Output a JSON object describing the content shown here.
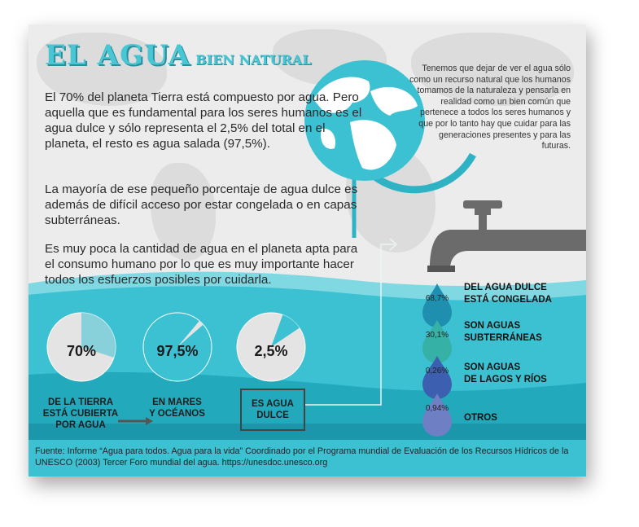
{
  "title": {
    "main": "EL AGUA",
    "sub": "BIEN NATURAL"
  },
  "paragraphs": [
    "El 70% del planeta Tierra está compuesto por agua. Pero aquella que es fundamental para los seres humanos es el agua dulce y sólo representa el 2,5% del total en el planeta, el resto es agua salada (97,5%).",
    "La mayoría de ese pequeño porcentaje de agua dulce es además de difícil acceso por estar congelada o en capas subterráneas.",
    "Es muy poca la cantidad de agua en el planeta apta para el consumo humano por lo que es muy importante hacer todos los esfuerzos posibles por cuidarla."
  ],
  "quote": "Tenemos que dejar de ver el agua sólo como un recurso natural que los humanos tomamos de la naturaleza y pensarla en realidad como un bien común que pertenece a todos los seres humanos y que por lo tanto hay que cuidar para las generaciones presentes y para las futuras.",
  "circles": [
    {
      "value": "70%",
      "fraction": 0.7,
      "label_line1": "DE LA TIERRA",
      "label_line2": "ESTÁ CUBIERTA",
      "label_line3": "POR AGUA"
    },
    {
      "value": "97,5%",
      "fraction": 0.975,
      "label_line1": "EN MARES",
      "label_line2": "Y OCÉANOS"
    },
    {
      "value": "2,5%",
      "fraction": 0.025,
      "label_line1": "ES AGUA",
      "label_line2": "DULCE"
    }
  ],
  "drops": [
    {
      "value": "68,7%",
      "label_line1": "DEL AGUA DULCE",
      "label_line2": "ESTÁ CONGELADA",
      "color": "#1f8fb0"
    },
    {
      "value": "30,1%",
      "label_line1": "SON AGUAS",
      "label_line2": "SUBTERRÁNEAS",
      "color": "#35b1a6"
    },
    {
      "value": "0,26%",
      "label_line1": "SON AGUAS",
      "label_line2": "DE LAGOS Y RÍOS",
      "color": "#3c5fb0"
    },
    {
      "value": "0,94%",
      "label_line1": "OTROS",
      "color": "#6f7fc4"
    }
  ],
  "source": "Fuente: Informe “Agua para todos. Agua para la vida” Coordinado por el Programa mundial de Evaluación de los Recursos Hídricos de la UNESCO (2003) Tercer Foro mundial del agua. https://unesdoc.unesco.org",
  "colors": {
    "accent": "#49c6d4",
    "accent_dark": "#2b8e9c",
    "water": "#3cc1d2",
    "water_dark": "#1fa6b9",
    "faucet": "#6b6b6b",
    "circle": "#e4e4e4"
  }
}
